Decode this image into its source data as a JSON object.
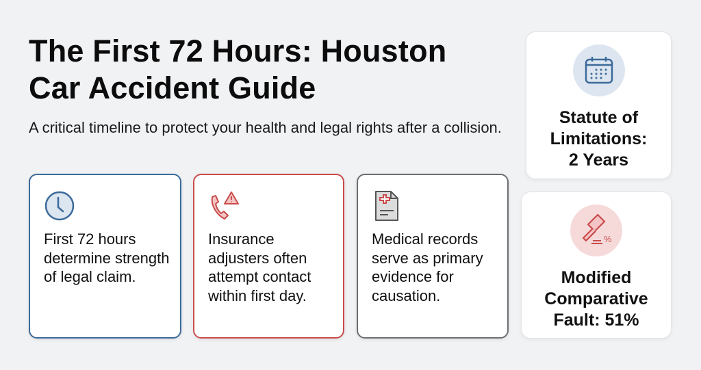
{
  "header": {
    "title_line1": "The First 72 Hours: Houston",
    "title_line2": "Car Accident Guide",
    "subtitle": "A critical timeline to protect your health and legal rights after a collision."
  },
  "cards": [
    {
      "icon": "clock-icon",
      "text": "First 72 hours determine strength of legal claim.",
      "border": "#3b6a9a"
    },
    {
      "icon": "phone-warning-icon",
      "text": "Insurance adjusters often attempt contact within first day.",
      "border": "#c94b4b"
    },
    {
      "icon": "medical-record-icon",
      "text": "Medical records serve as primary evidence for causation.",
      "border": "#6b6e72"
    }
  ],
  "side_cards": [
    {
      "icon": "calendar-icon",
      "text": "Statute of Limitations: 2 Years",
      "circle": "#dde6f0"
    },
    {
      "icon": "gavel-percent-icon",
      "text": "Modified Comparative Fault: 51%",
      "circle": "#f6dada"
    }
  ]
}
